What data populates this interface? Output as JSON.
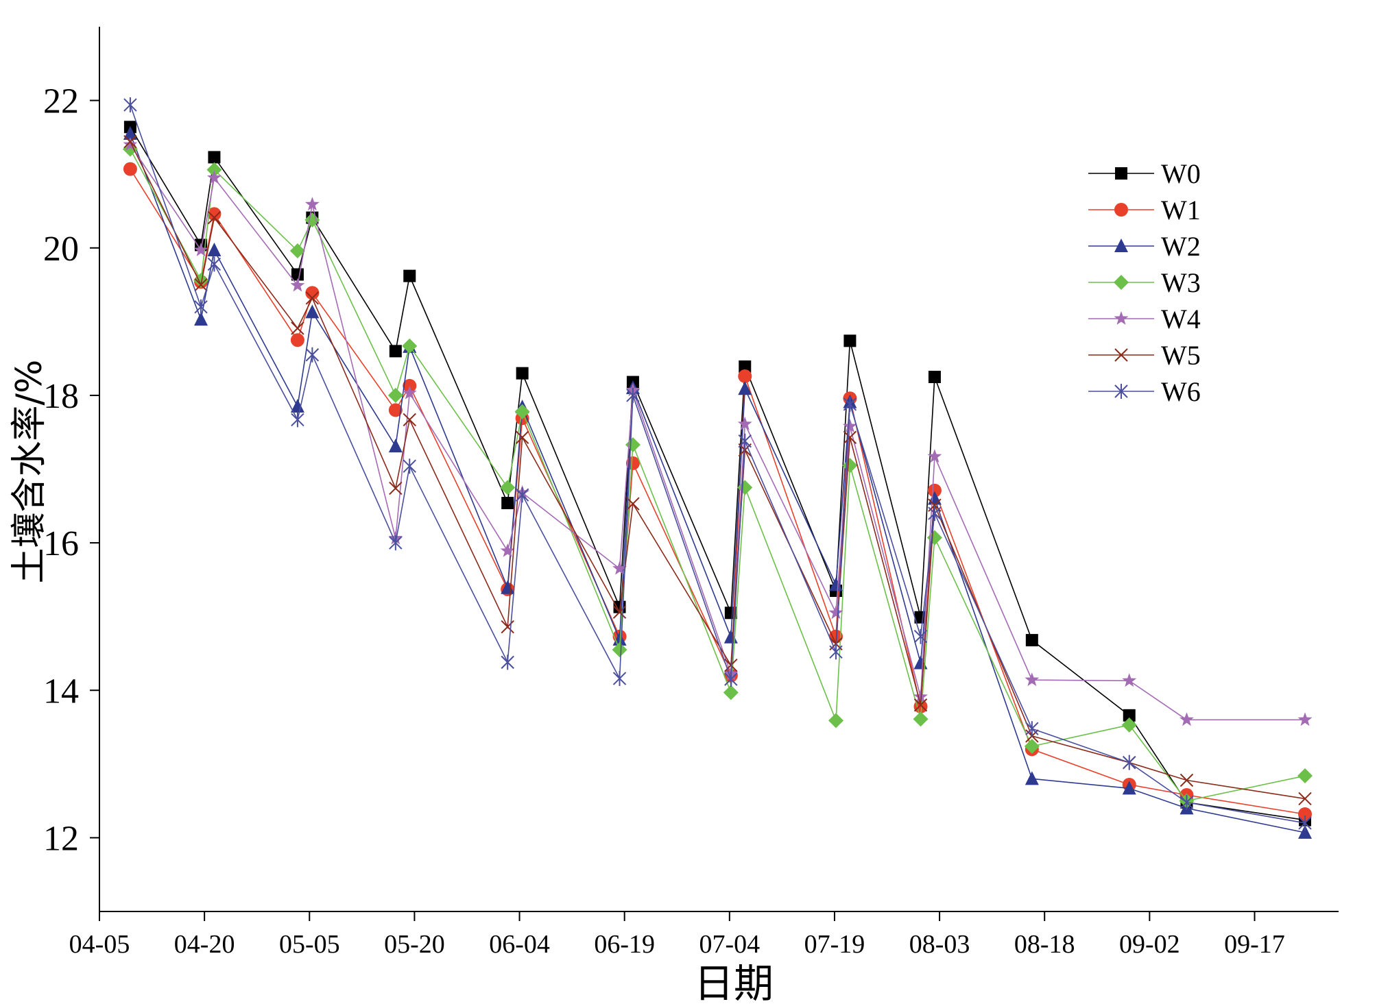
{
  "chart_data": {
    "type": "line",
    "title": "",
    "xlabel": "日期",
    "ylabel": "土壤含水率/%",
    "xlim": [
      0,
      177
    ],
    "ylim": [
      11,
      23
    ],
    "x_unit": "days since 04-05",
    "xticks": [
      0,
      15,
      30,
      45,
      60,
      75,
      90,
      105,
      120,
      135,
      150,
      165
    ],
    "xtick_labels": [
      "04-05",
      "04-20",
      "05-05",
      "05-20",
      "06-04",
      "06-19",
      "07-04",
      "07-19",
      "08-03",
      "08-18",
      "09-02",
      "09-17"
    ],
    "yticks": [
      12,
      14,
      16,
      18,
      20,
      22
    ],
    "ytick_labels": [
      "12",
      "14",
      "16",
      "18",
      "20",
      "22"
    ],
    "grid": false,
    "legend_position": "top-right",
    "x": [
      4.4,
      14.5,
      16.4,
      28.3,
      30.4,
      42.3,
      44.3,
      58.3,
      60.4,
      74.3,
      76.2,
      90.2,
      92.2,
      105.2,
      107.2,
      117.3,
      119.3,
      133.2,
      147.1,
      155.3,
      172.2
    ],
    "series": [
      {
        "name": "W0",
        "color": "#000000",
        "marker": "square",
        "values": [
          21.64,
          20.04,
          21.23,
          19.64,
          20.41,
          18.6,
          19.62,
          16.54,
          18.3,
          15.13,
          18.18,
          15.05,
          18.39,
          15.35,
          18.74,
          14.99,
          18.25,
          14.68,
          13.66,
          12.48,
          12.24
        ]
      },
      {
        "name": "W1",
        "color": "#e8402a",
        "marker": "circle",
        "values": [
          21.07,
          19.54,
          20.46,
          18.75,
          19.39,
          17.8,
          18.13,
          15.37,
          17.69,
          14.73,
          17.08,
          14.2,
          18.26,
          14.73,
          17.96,
          13.78,
          16.71,
          13.2,
          12.72,
          12.58,
          12.32
        ]
      },
      {
        "name": "W2",
        "color": "#2e3a8f",
        "marker": "triangle",
        "values": [
          21.55,
          19.03,
          19.97,
          17.85,
          19.13,
          17.31,
          18.66,
          15.39,
          17.84,
          14.69,
          18.1,
          14.72,
          18.09,
          15.43,
          17.91,
          14.37,
          16.6,
          12.8,
          12.67,
          12.4,
          12.07
        ]
      },
      {
        "name": "W3",
        "color": "#6cc04a",
        "marker": "diamond",
        "values": [
          21.34,
          19.56,
          21.06,
          19.96,
          20.38,
          18.0,
          18.67,
          16.75,
          17.78,
          14.55,
          17.33,
          13.97,
          16.75,
          13.59,
          17.05,
          13.61,
          16.07,
          13.24,
          13.53,
          12.5,
          12.84
        ]
      },
      {
        "name": "W4",
        "color": "#a46bb5",
        "marker": "star",
        "values": [
          21.4,
          19.97,
          20.95,
          19.49,
          20.59,
          16.06,
          18.03,
          15.89,
          16.68,
          15.65,
          18.07,
          14.22,
          17.61,
          15.05,
          17.58,
          13.91,
          17.17,
          14.14,
          14.13,
          13.6,
          13.6
        ]
      },
      {
        "name": "W5",
        "color": "#8b2a1a",
        "marker": "x",
        "values": [
          21.44,
          19.5,
          20.41,
          18.91,
          19.32,
          16.74,
          17.67,
          14.86,
          17.43,
          15.06,
          16.53,
          14.34,
          17.26,
          14.63,
          17.43,
          13.8,
          16.51,
          13.38,
          13.02,
          12.78,
          12.53
        ]
      },
      {
        "name": "W6",
        "color": "#4a4f9e",
        "marker": "asterisk",
        "values": [
          21.94,
          19.2,
          19.78,
          17.67,
          18.55,
          16.0,
          17.04,
          14.38,
          16.65,
          14.16,
          18.0,
          14.15,
          17.38,
          14.52,
          17.88,
          14.73,
          16.4,
          13.48,
          13.02,
          12.48,
          12.2
        ]
      }
    ]
  }
}
